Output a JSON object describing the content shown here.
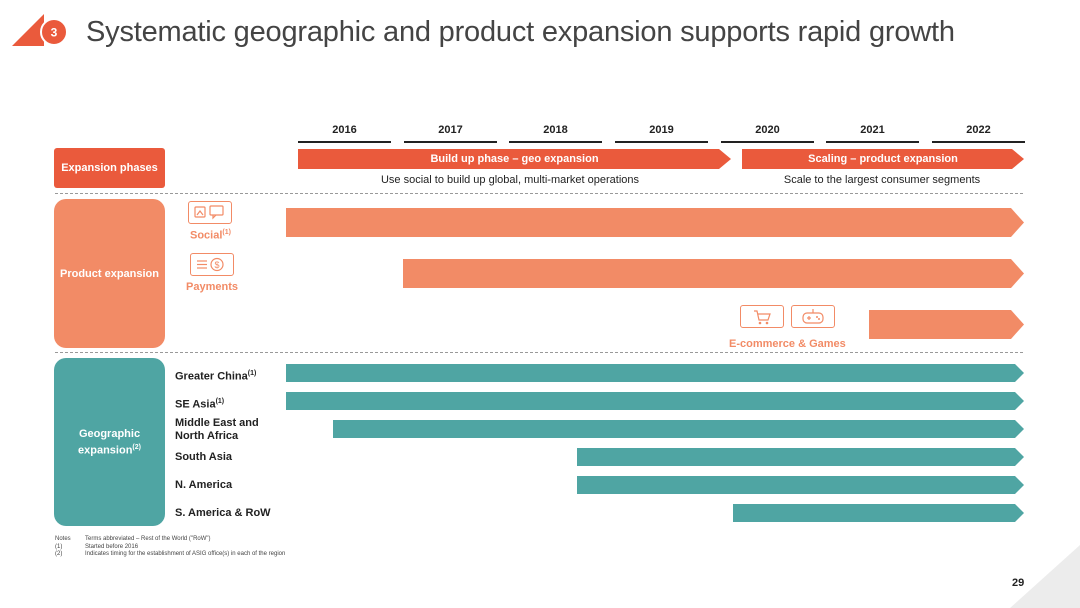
{
  "header": {
    "section_number": "3",
    "title": "Systematic geographic and product expansion supports rapid growth"
  },
  "timeline": {
    "years": [
      "2016",
      "2017",
      "2018",
      "2019",
      "2020",
      "2021",
      "2022"
    ]
  },
  "phases": {
    "label": "Expansion phases",
    "geo": {
      "title": "Build up phase – geo expansion",
      "subtitle": "Use social to build up global, multi-market operations"
    },
    "scaling": {
      "title": "Scaling – product expansion",
      "subtitle": "Scale to the largest consumer segments"
    }
  },
  "product_expansion": {
    "label": "Product expansion",
    "items": [
      {
        "name": "Social",
        "note": "(1)",
        "start": "before 2016"
      },
      {
        "name": "Payments",
        "start": "2017"
      },
      {
        "name": "E-commerce & Games",
        "start": "2021"
      }
    ]
  },
  "geographic_expansion": {
    "label": "Geographic expansion",
    "label_note": "(2)",
    "regions": [
      {
        "name": "Greater China",
        "note": "(1)",
        "start": "before 2016"
      },
      {
        "name": "SE Asia",
        "note": "(1)",
        "start": "before 2016"
      },
      {
        "name_line1": "Middle East and",
        "name_line2": "North Africa",
        "start": "2016"
      },
      {
        "name": "South Asia",
        "start": "2018"
      },
      {
        "name": "N. America",
        "start": "2018"
      },
      {
        "name": "S. America & RoW",
        "start": "2020"
      }
    ]
  },
  "notes": {
    "title": "Notes",
    "lines": [
      {
        "key": "Notes",
        "text": "Terms abbreviated – Rest of the World (\"RoW\")"
      },
      {
        "key": "(1)",
        "text": "Started before 2016"
      },
      {
        "key": "(2)",
        "text": "Indicates timing for the establishment of ASIG office(s) in each of the region"
      }
    ]
  },
  "page_number": "29",
  "colors": {
    "accent": "#ea5a3c",
    "product": "#f28b66",
    "geo": "#4fa5a3"
  }
}
